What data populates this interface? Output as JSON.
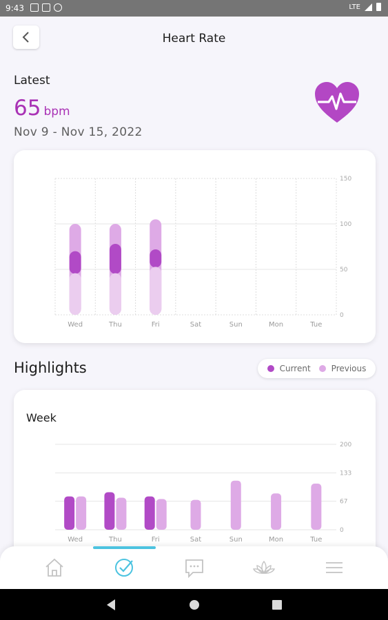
{
  "status_bar": {
    "time": "9:43",
    "network": "LTE"
  },
  "header": {
    "title": "Heart Rate"
  },
  "latest": {
    "label": "Latest",
    "value": "65",
    "unit": "bpm",
    "date_range": "Nov 9 - Nov 15, 2022"
  },
  "colors": {
    "accent": "#a932b5",
    "current": "#b14ac6",
    "previous": "#deaae6",
    "previous_light": "#ebcdef",
    "nav_active": "#4cc3e0"
  },
  "highlights": {
    "title": "Highlights",
    "legend_current": "Current",
    "legend_previous": "Previous"
  },
  "chart_data": [
    {
      "type": "bar",
      "title": "",
      "categories": [
        "Wed",
        "Thu",
        "Fri",
        "Sat",
        "Sun",
        "Mon",
        "Tue"
      ],
      "yticks": [
        "150",
        "100",
        "50",
        "0"
      ],
      "ylim": [
        0,
        150
      ],
      "series": [
        {
          "name": "Previous",
          "ranges": [
            [
              0,
              100
            ],
            [
              0,
              100
            ],
            [
              0,
              105
            ],
            null,
            null,
            null,
            null
          ]
        },
        {
          "name": "Current",
          "ranges": [
            [
              45,
              70
            ],
            [
              45,
              78
            ],
            [
              52,
              72
            ],
            null,
            null,
            null,
            null
          ]
        }
      ],
      "grid": true
    },
    {
      "type": "bar",
      "title": "Week",
      "categories": [
        "Wed",
        "Thu",
        "Fri",
        "Sat",
        "Sun",
        "Mon",
        "Tue"
      ],
      "yticks": [
        "200",
        "133",
        "67",
        "0"
      ],
      "ylim": [
        0,
        200
      ],
      "series": [
        {
          "name": "Current",
          "values": [
            78,
            88,
            78,
            null,
            null,
            null,
            null
          ]
        },
        {
          "name": "Previous",
          "values": [
            78,
            75,
            72,
            70,
            115,
            85,
            108
          ]
        }
      ],
      "grid": true
    }
  ],
  "bottom_nav": [
    "home-icon",
    "check-circle-icon",
    "chat-icon",
    "lotus-icon",
    "menu-icon"
  ]
}
